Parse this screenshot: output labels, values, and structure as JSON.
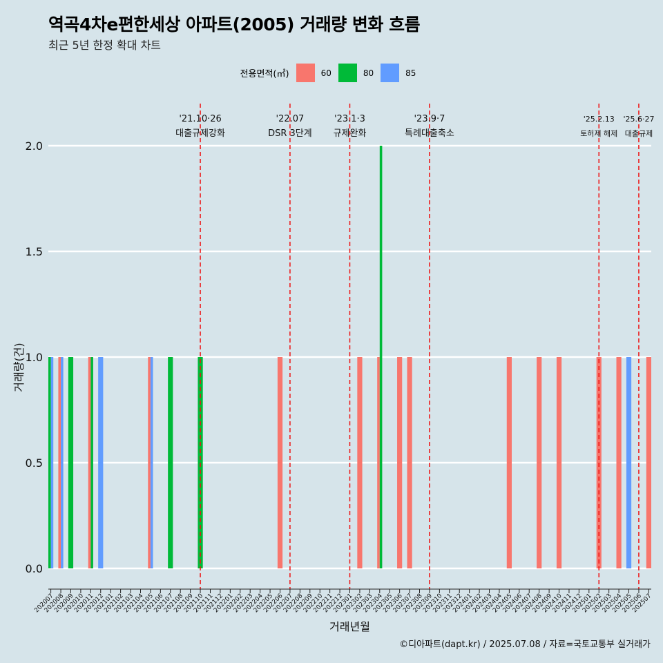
{
  "title": "역곡4차e편한세상 아파트(2005) 거래량 변화 흐름",
  "subtitle": "최근 5년 한정 확대 차트",
  "caption": "©디아파트(dapt.kr) / 2025.07.08 / 자료=국토교통부 실거래가",
  "legend": {
    "title": "전용면적(㎡)",
    "items": [
      {
        "label": "60",
        "color": "#f8766d"
      },
      {
        "label": "80",
        "color": "#00ba38"
      },
      {
        "label": "85",
        "color": "#619cff"
      }
    ]
  },
  "chart_data": {
    "type": "bar",
    "xlabel": "거래년월",
    "ylabel": "거래량(건)",
    "ylim": [
      0,
      2
    ],
    "yticks": [
      "0.0",
      "0.5",
      "1.0",
      "1.5",
      "2.0"
    ],
    "grid": true,
    "legend_position": "top",
    "categories": [
      "202007",
      "202008",
      "202009",
      "202010",
      "202011",
      "202012",
      "202101",
      "202102",
      "202103",
      "202104",
      "202105",
      "202106",
      "202107",
      "202108",
      "202109",
      "202110",
      "202111",
      "202112",
      "202201",
      "202202",
      "202203",
      "202204",
      "202205",
      "202206",
      "202207",
      "202208",
      "202209",
      "202210",
      "202211",
      "202212",
      "202301",
      "202302",
      "202303",
      "202304",
      "202305",
      "202306",
      "202307",
      "202308",
      "202309",
      "202310",
      "202311",
      "202312",
      "202401",
      "202402",
      "202403",
      "202404",
      "202405",
      "202406",
      "202407",
      "202408",
      "202409",
      "202410",
      "202411",
      "202412",
      "202501",
      "202502",
      "202503",
      "202504",
      "202505",
      "202506",
      "202507"
    ],
    "series": [
      {
        "name": "60",
        "color": "#f8766d",
        "values": [
          0,
          1,
          0,
          0,
          1,
          0,
          0,
          0,
          0,
          0,
          1,
          0,
          0,
          0,
          0,
          0,
          0,
          0,
          0,
          0,
          0,
          0,
          0,
          1,
          0,
          0,
          0,
          0,
          0,
          0,
          0,
          1,
          0,
          1,
          0,
          1,
          1,
          0,
          0,
          0,
          0,
          0,
          0,
          0,
          0,
          0,
          1,
          0,
          0,
          1,
          0,
          1,
          0,
          0,
          0,
          1,
          0,
          1,
          0,
          0,
          1
        ]
      },
      {
        "name": "80",
        "color": "#00ba38",
        "values": [
          1,
          0,
          1,
          0,
          1,
          0,
          0,
          0,
          0,
          0,
          0,
          0,
          1,
          0,
          0,
          1,
          0,
          0,
          0,
          0,
          0,
          0,
          0,
          0,
          0,
          0,
          0,
          0,
          0,
          0,
          0,
          0,
          0,
          2,
          0,
          0,
          0,
          0,
          0,
          0,
          0,
          0,
          0,
          0,
          0,
          0,
          0,
          0,
          0,
          0,
          0,
          0,
          0,
          0,
          0,
          0,
          0,
          0,
          0,
          0,
          0
        ]
      },
      {
        "name": "85",
        "color": "#619cff",
        "values": [
          1,
          1,
          0,
          0,
          0,
          1,
          0,
          0,
          0,
          0,
          1,
          0,
          0,
          0,
          0,
          0,
          0,
          0,
          0,
          0,
          0,
          0,
          0,
          0,
          0,
          0,
          0,
          0,
          0,
          0,
          0,
          0,
          0,
          0,
          0,
          0,
          0,
          0,
          0,
          0,
          0,
          0,
          0,
          0,
          0,
          0,
          0,
          0,
          0,
          0,
          0,
          0,
          0,
          0,
          0,
          0,
          0,
          0,
          1,
          0,
          0
        ]
      }
    ],
    "annotations": [
      {
        "category": "202110",
        "date": "'21.10·26",
        "label": "대출규제강화"
      },
      {
        "category": "202207",
        "date": "'22.07",
        "label": "DSR 3단계"
      },
      {
        "category": "202301",
        "date": "'23.1·3",
        "label": "규제완화"
      },
      {
        "category": "202309",
        "date": "'23.9·7",
        "label": "특례대출축소"
      },
      {
        "category": "202502",
        "date": "'25.2.13",
        "label": "토허제 해제"
      },
      {
        "category": "202506",
        "date": "'25.6·27",
        "label": "대출규제"
      }
    ]
  }
}
